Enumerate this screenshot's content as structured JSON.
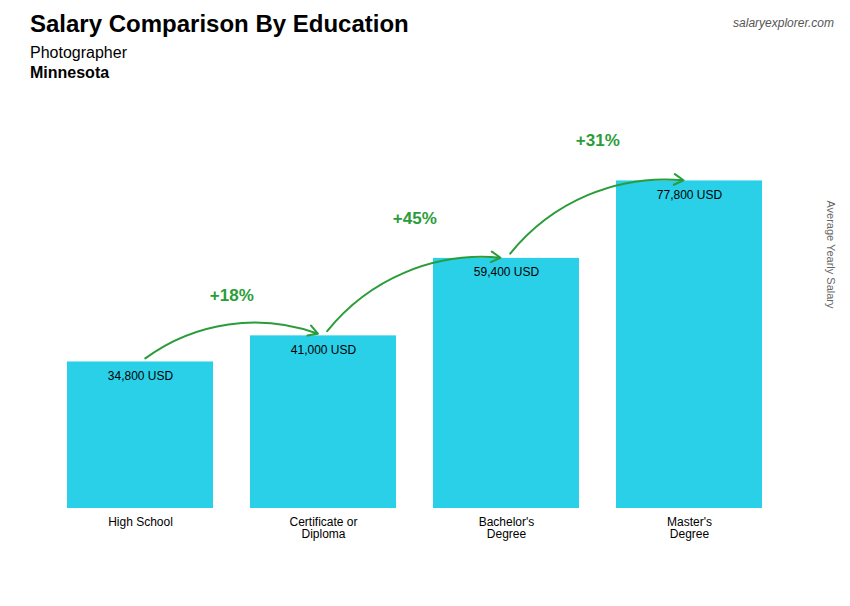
{
  "chart_data": {
    "type": "bar",
    "title": "Salary Comparison By Education",
    "subtitle": [
      "Photographer",
      "Minnesota"
    ],
    "ylabel": "Average Yearly Salary",
    "credit": "salaryexplorer.com",
    "categories": [
      "High School",
      "Certificate or\nDiploma",
      "Bachelor's\nDegree",
      "Master's\nDegree"
    ],
    "values": [
      34800,
      41000,
      59400,
      77800
    ],
    "value_labels": [
      "34,800 USD",
      "41,000 USD",
      "59,400 USD",
      "77,800 USD"
    ],
    "data_labels": true,
    "annotations": [
      "+18%",
      "+45%",
      "+31%"
    ],
    "color": "#29d0e8",
    "ylim": [
      0,
      95000
    ],
    "tick_labels": "x",
    "grid": false
  }
}
